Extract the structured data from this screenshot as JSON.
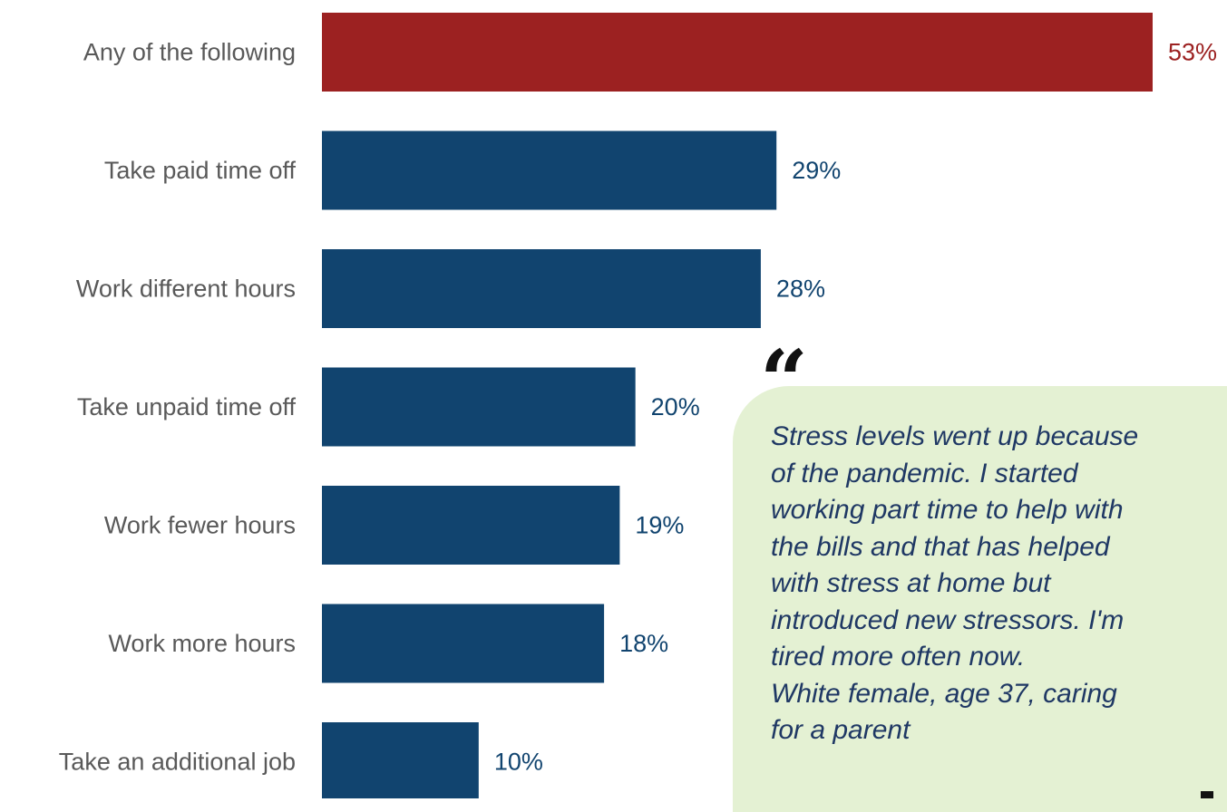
{
  "chart_data": {
    "type": "bar",
    "orientation": "horizontal",
    "categories": [
      "Any of the following",
      "Take paid time off",
      "Work different hours",
      "Take unpaid time off",
      "Work fewer hours",
      "Work more hours",
      "Take an additional job"
    ],
    "values": [
      53,
      29,
      28,
      20,
      19,
      18,
      10
    ],
    "value_labels": [
      "53%",
      "29%",
      "28%",
      "20%",
      "19%",
      "18%",
      "10%"
    ],
    "unit": "%",
    "xlim": [
      0,
      53
    ],
    "grid": false,
    "colors": {
      "highlight": "#9c2121",
      "bar": "#11446f",
      "highlight_label": "#9c2121",
      "bar_label": "#11446f"
    }
  },
  "quote": {
    "lines": [
      "Stress levels went up because",
      "of the pandemic. I started",
      "working part time to help with",
      "the bills and that has helped",
      "with stress at home but",
      "introduced new stressors. I'm",
      "tired more often now.",
      "White female, age 37, caring",
      "for a parent"
    ],
    "background": "#e4f1d3",
    "text_color": "#1f3864"
  }
}
